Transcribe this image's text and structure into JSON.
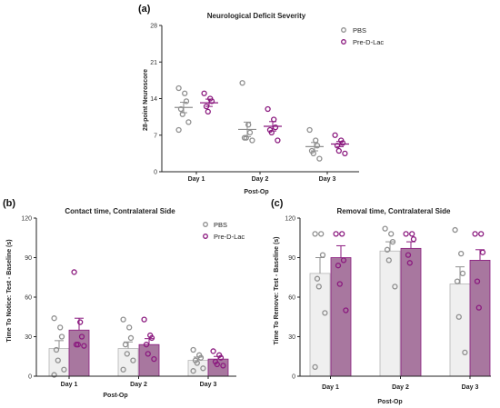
{
  "colors": {
    "pbs": "#8f8f8f",
    "pbs_fill": "#efefef",
    "lac": "#8b1a7f",
    "lac_fill": "#a8779f",
    "axis": "#222222"
  },
  "chart_data": [
    {
      "panel": "(a)",
      "type": "scatter",
      "title": "Neurological Deficit Severity",
      "xlabel": "Post-Op",
      "ylabel": "28-point Neuroscore",
      "ylim": [
        0,
        28
      ],
      "yticks": [
        0,
        7,
        14,
        21,
        28
      ],
      "categories": [
        "Day 1",
        "Day 2",
        "Day 3"
      ],
      "legend": {
        "placement": "top-right",
        "entries": [
          "PBS",
          "Pre-D-Lac"
        ]
      },
      "series": [
        {
          "name": "PBS",
          "points": [
            [
              16,
              15,
              13.5,
              12,
              11,
              9.5,
              8
            ],
            [
              17,
              9,
              7.5,
              6.5,
              6.5,
              6
            ],
            [
              8,
              6,
              5,
              4,
              3.5,
              2.5
            ]
          ],
          "mean": [
            12.3,
            8.1,
            4.8
          ],
          "sem": [
            1.0,
            1.4,
            0.8
          ]
        },
        {
          "name": "Pre-D-Lac",
          "points": [
            [
              15,
              14,
              13.5,
              12.5,
              11.5
            ],
            [
              12,
              10,
              8.5,
              8,
              7.5,
              6
            ],
            [
              7,
              6,
              5.5,
              5,
              4,
              3.5
            ]
          ],
          "mean": [
            13.2,
            8.7,
            5.3
          ],
          "sem": [
            0.7,
            0.9,
            0.5
          ]
        }
      ]
    },
    {
      "panel": "(b)",
      "type": "bar",
      "title": "Contact time, Contralateral Side",
      "xlabel": "Post-Op",
      "ylabel": "Time To Notice: Test - Baseline (s)",
      "ylim": [
        0,
        120
      ],
      "yticks": [
        0,
        30,
        60,
        90,
        120
      ],
      "categories": [
        "Day 1",
        "Day 2",
        "Day 3"
      ],
      "legend": {
        "placement": "top-right",
        "entries": [
          "PBS",
          "Pre-D-Lac"
        ]
      },
      "series": [
        {
          "name": "PBS",
          "points": [
            [
              44,
              37,
              30,
              20,
              12,
              5,
              1
            ],
            [
              43,
              37,
              29,
              24,
              17,
              12,
              5
            ],
            [
              20,
              16,
              14,
              12,
              10,
              6,
              4
            ]
          ],
          "mean": [
            21,
            21,
            12
          ],
          "sem": [
            6,
            5,
            2.5
          ]
        },
        {
          "name": "Pre-D-Lac",
          "points": [
            [
              79,
              41,
              30,
              24,
              24,
              23
            ],
            [
              43,
              31,
              29,
              24,
              17,
              13
            ],
            [
              19,
              16,
              14,
              11,
              9,
              8
            ]
          ],
          "mean": [
            35,
            24,
            13
          ],
          "sem": [
            9,
            4.5,
            2
          ]
        }
      ]
    },
    {
      "panel": "(c)",
      "type": "bar",
      "title": "Removal time, Contralateral Side",
      "xlabel": "Post-Op",
      "ylabel": "Time To Remove: Test - Baseline (s)",
      "ylim": [
        0,
        120
      ],
      "yticks": [
        0,
        30,
        60,
        90,
        120
      ],
      "categories": [
        "Day 1",
        "Day 2",
        "Day 3"
      ],
      "series": [
        {
          "name": "PBS",
          "points": [
            [
              108,
              108,
              92,
              74,
              68,
              48,
              7
            ],
            [
              112,
              108,
              102,
              96,
              88,
              68
            ],
            [
              111,
              93,
              78,
              72,
              45,
              18
            ]
          ],
          "mean": [
            78,
            95,
            70
          ],
          "sem": [
            12,
            7,
            13
          ]
        },
        {
          "name": "Pre-D-Lac",
          "points": [
            [
              108,
              108,
              88,
              84,
              70,
              50
            ],
            [
              108,
              108,
              104,
              92,
              86
            ],
            [
              108,
              108,
              94,
              72,
              52
            ]
          ],
          "mean": [
            90,
            97,
            88
          ],
          "sem": [
            9,
            5,
            8
          ]
        }
      ]
    }
  ]
}
